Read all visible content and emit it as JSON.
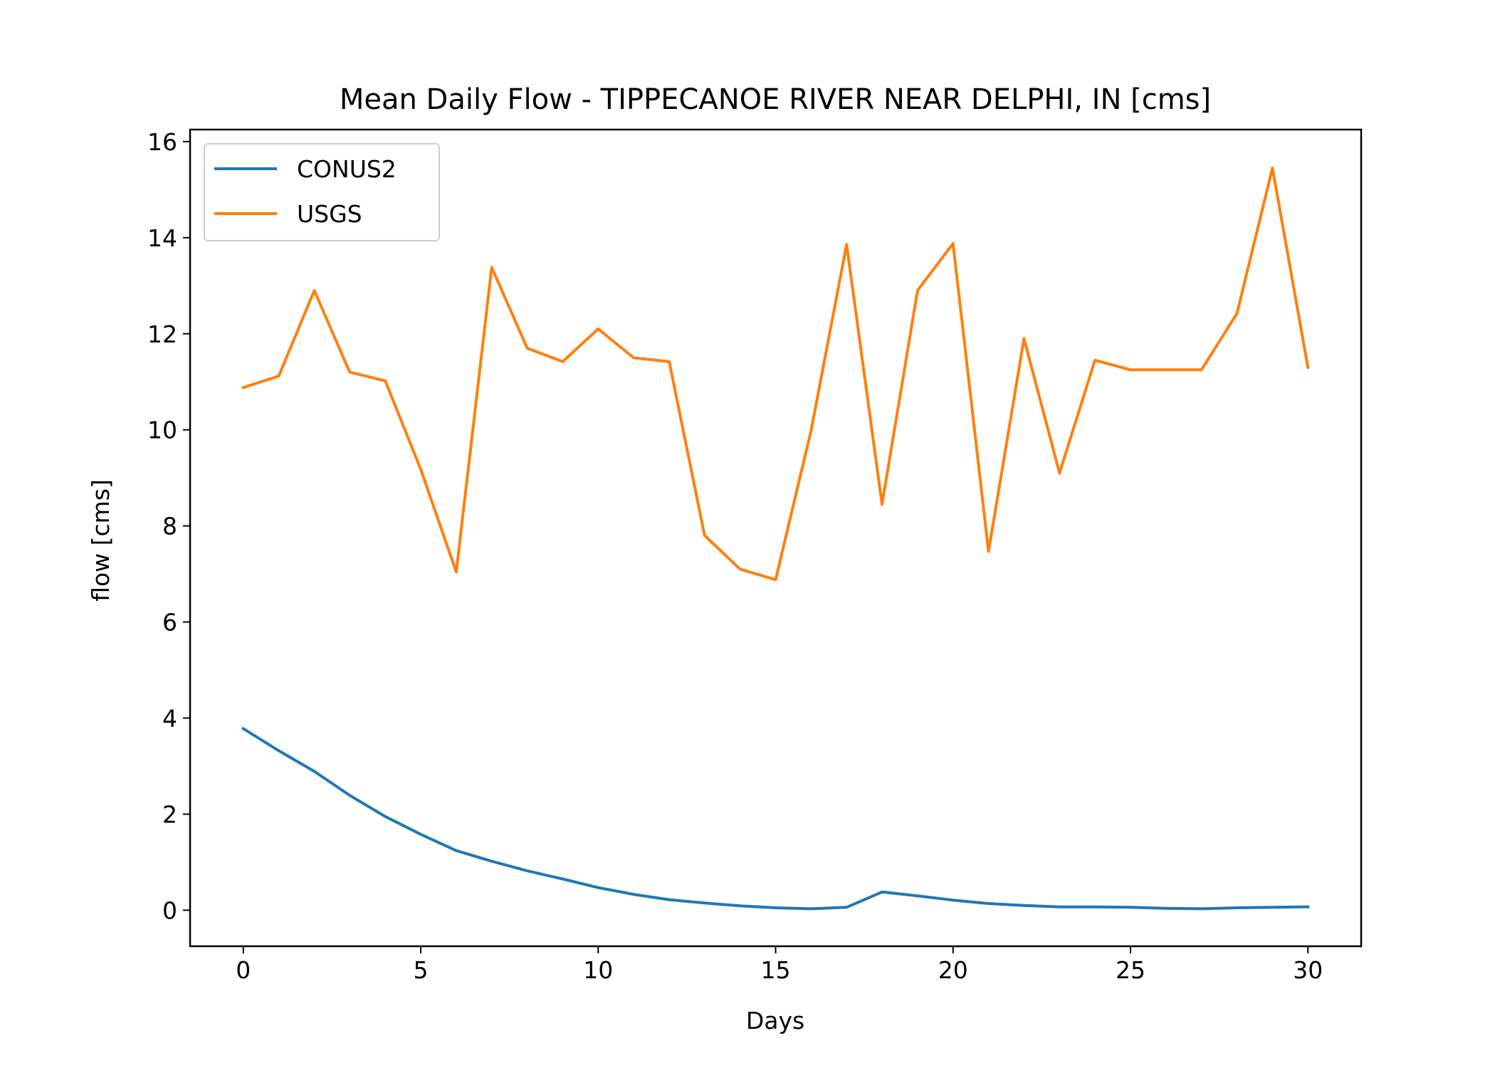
{
  "chart_data": {
    "type": "line",
    "title": "Mean Daily Flow - TIPPECANOE RIVER NEAR DELPHI, IN [cms]",
    "xlabel": "Days",
    "ylabel": "flow [cms]",
    "xlim": [
      -1.5,
      31.5
    ],
    "ylim": [
      -0.75,
      16.25
    ],
    "xticks": [
      0,
      5,
      10,
      15,
      20,
      25,
      30
    ],
    "yticks": [
      0,
      2,
      4,
      6,
      8,
      10,
      12,
      14,
      16
    ],
    "grid": false,
    "legend_position": "top-left",
    "x": [
      0,
      1,
      2,
      3,
      4,
      5,
      6,
      7,
      8,
      9,
      10,
      11,
      12,
      13,
      14,
      15,
      16,
      17,
      18,
      19,
      20,
      21,
      22,
      23,
      24,
      25,
      26,
      27,
      28,
      29,
      30
    ],
    "series": [
      {
        "name": "CONUS2",
        "color": "#1f77b4",
        "values": [
          3.78,
          3.32,
          2.89,
          2.39,
          1.95,
          1.58,
          1.24,
          1.02,
          0.82,
          0.65,
          0.47,
          0.33,
          0.22,
          0.15,
          0.09,
          0.05,
          0.03,
          0.06,
          0.38,
          0.3,
          0.21,
          0.14,
          0.1,
          0.07,
          0.07,
          0.06,
          0.04,
          0.03,
          0.05,
          0.06,
          0.07
        ]
      },
      {
        "name": "USGS",
        "color": "#ff7f0e",
        "values": [
          10.88,
          11.12,
          12.9,
          11.2,
          11.02,
          9.18,
          7.04,
          13.38,
          11.7,
          11.42,
          12.1,
          11.5,
          11.42,
          7.8,
          7.1,
          6.88,
          9.98,
          13.86,
          8.45,
          12.9,
          13.88,
          7.47,
          11.9,
          9.1,
          11.45,
          11.25,
          11.25,
          11.25,
          12.42,
          15.45,
          11.3
        ]
      }
    ]
  }
}
